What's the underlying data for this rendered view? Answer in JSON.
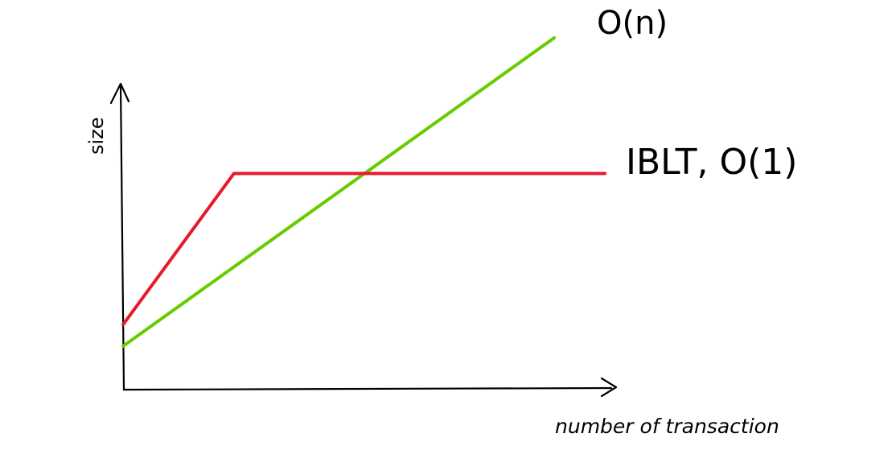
{
  "chart_data": {
    "type": "line",
    "xlabel": "number of transaction",
    "ylabel": "size",
    "grid": false,
    "series": [
      {
        "name": "O(n)",
        "color": "#66cc00",
        "x": [
          0,
          100
        ],
        "y": [
          0,
          100
        ]
      },
      {
        "name": "IBLT, O(1)",
        "color": "#e8192c",
        "x": [
          0,
          23,
          100
        ],
        "y": [
          7,
          56,
          56
        ]
      }
    ]
  }
}
